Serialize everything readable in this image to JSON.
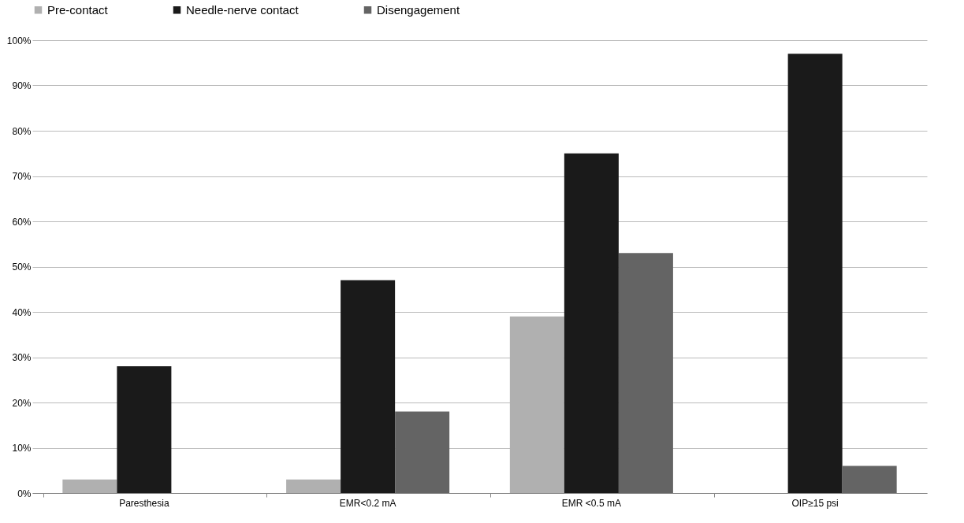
{
  "chart_data": {
    "type": "bar",
    "categories": [
      "Paresthesia",
      "EMR<0.2 mA",
      "EMR <0.5 mA",
      "OIP≥15 psi"
    ],
    "series": [
      {
        "name": "Pre-contact",
        "color": "#b0b0b0",
        "values": [
          3,
          3,
          39,
          0
        ]
      },
      {
        "name": "Needle-nerve contact",
        "color": "#1a1a1a",
        "values": [
          28,
          47,
          75,
          97
        ]
      },
      {
        "name": "Disengagement",
        "color": "#646464",
        "values": [
          0,
          18,
          53,
          6
        ]
      }
    ],
    "ylim": [
      0,
      100
    ],
    "yticks": [
      {
        "value": 0,
        "label": "0%"
      },
      {
        "value": 10,
        "label": "10%"
      },
      {
        "value": 20,
        "label": "20%"
      },
      {
        "value": 30,
        "label": "30%"
      },
      {
        "value": 40,
        "label": "40%"
      },
      {
        "value": 50,
        "label": "50%"
      },
      {
        "value": 60,
        "label": "60%"
      },
      {
        "value": 70,
        "label": "70%"
      },
      {
        "value": 80,
        "label": "80%"
      },
      {
        "value": 90,
        "label": "90%"
      },
      {
        "value": 100,
        "label": "100%"
      }
    ],
    "grid": "y",
    "legend": "top"
  }
}
